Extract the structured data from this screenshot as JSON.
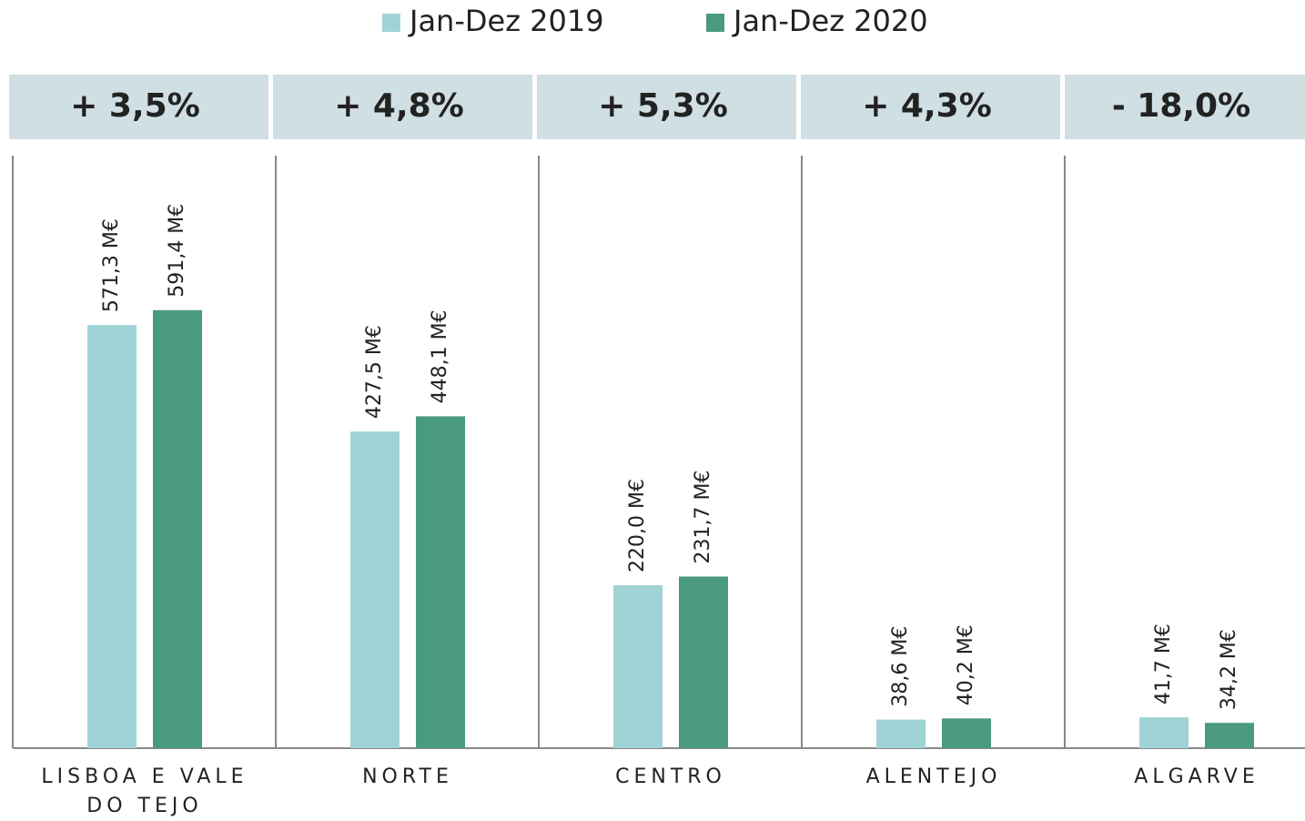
{
  "chart_data": {
    "type": "bar",
    "categories": [
      "LISBOA E VALE DO TEJO",
      "NORTE",
      "CENTRO",
      "ALENTEJO",
      "ALGARVE"
    ],
    "changes": [
      "+ 3,5%",
      "+ 4,8%",
      "+ 5,3%",
      "+ 4,3%",
      "- 18,0%"
    ],
    "series": [
      {
        "name": "Jan-Dez 2019",
        "color": "#9fd3d6",
        "values": [
          571.3,
          427.5,
          220.0,
          38.6,
          41.7
        ],
        "value_labels": [
          "571,3 M€",
          "427,5 M€",
          "220,0 M€",
          "38,6 M€",
          "41,7 M€"
        ]
      },
      {
        "name": "Jan-Dez 2020",
        "color": "#4a9a7e",
        "values": [
          591.4,
          448.1,
          231.7,
          40.2,
          34.2
        ],
        "value_labels": [
          "591,4 M€",
          "448,1 M€",
          "231,7 M€",
          "40,2 M€",
          "34,2 M€"
        ]
      }
    ],
    "ylim": [
      0,
      800
    ]
  }
}
